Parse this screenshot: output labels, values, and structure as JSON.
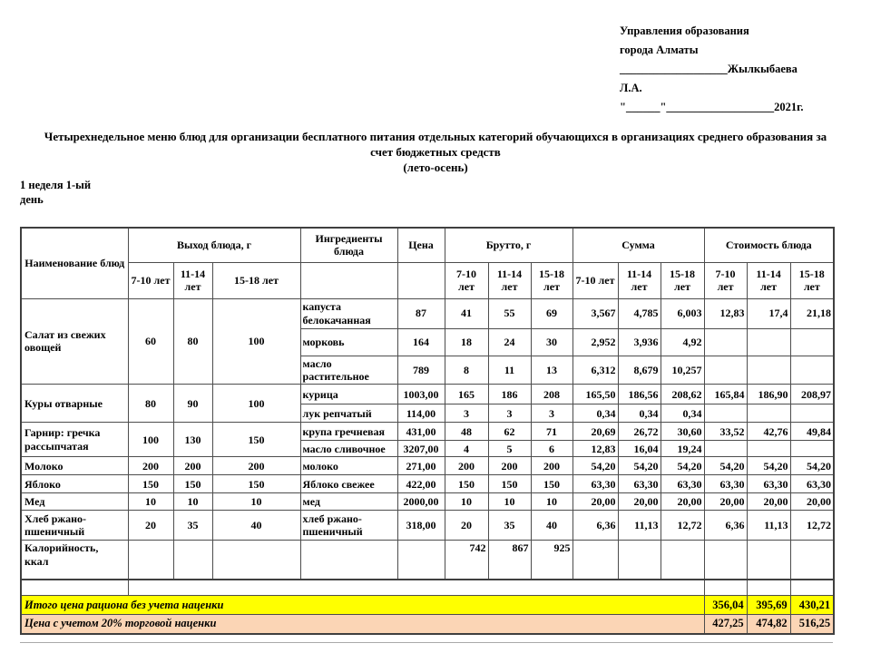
{
  "approval_block": {
    "lines": [
      "Управления образования",
      "города Алматы",
      "___________________Жылкыбаева",
      "Л.А.",
      "\"______\"___________________2021г."
    ]
  },
  "title": {
    "main": "Четырехнедельное меню блюд для организации бесплатного питания отдельных категорий обучающихся в организациях среднего образования за счет бюджетных средств",
    "season": "(лето-осень)"
  },
  "week_day_label": "1 неделя 1-ый день",
  "menu_table": {
    "columns": {
      "dish_name": "Наименование блюд",
      "output_group": "Выход блюда, г",
      "ingredients": "Ингредиенты блюда",
      "price": "Цена",
      "brutto_group": "Брутто, г",
      "sum_group": "Сумма",
      "cost_group": "Стоимость блюда"
    },
    "age_groups": [
      "7-10 лет",
      "11-14 лет",
      "15-18 лет"
    ],
    "dishes": [
      {
        "name": "Салат из свежих овощей",
        "output": [
          "60",
          "80",
          "100"
        ],
        "rows": [
          {
            "ingredient": "капуста белокачанная",
            "price": "87",
            "brutto": [
              "41",
              "55",
              "69"
            ],
            "sum": [
              "3,567",
              "4,785",
              "6,003"
            ],
            "cost": [
              "12,83",
              "17,4",
              "21,18"
            ]
          },
          {
            "ingredient": "морковь",
            "price": "164",
            "brutto": [
              "18",
              "24",
              "30"
            ],
            "sum": [
              "2,952",
              "3,936",
              "4,92"
            ],
            "cost": [
              "",
              "",
              ""
            ]
          },
          {
            "ingredient": "масло растительное",
            "price": "789",
            "brutto": [
              "8",
              "11",
              "13"
            ],
            "sum": [
              "6,312",
              "8,679",
              "10,257"
            ],
            "cost": [
              "",
              "",
              ""
            ]
          }
        ]
      },
      {
        "name": "Куры отварные",
        "output": [
          "80",
          "90",
          "100"
        ],
        "rows": [
          {
            "ingredient": "курица",
            "price": "1003,00",
            "brutto": [
              "165",
              "186",
              "208"
            ],
            "sum": [
              "165,50",
              "186,56",
              "208,62"
            ],
            "cost": [
              "165,84",
              "186,90",
              "208,97"
            ]
          },
          {
            "ingredient": "лук репчатый",
            "price": "114,00",
            "brutto": [
              "3",
              "3",
              "3"
            ],
            "sum": [
              "0,34",
              "0,34",
              "0,34"
            ],
            "cost": [
              "",
              "",
              ""
            ]
          }
        ]
      },
      {
        "name": "Гарнир: гречка рассыпчатая",
        "output": [
          "100",
          "130",
          "150"
        ],
        "rows": [
          {
            "ingredient": "крупа гречневая",
            "price": "431,00",
            "brutto": [
              "48",
              "62",
              "71"
            ],
            "sum": [
              "20,69",
              "26,72",
              "30,60"
            ],
            "cost": [
              "33,52",
              "42,76",
              "49,84"
            ]
          },
          {
            "ingredient": "масло сливочное",
            "price": "3207,00",
            "brutto": [
              "4",
              "5",
              "6"
            ],
            "sum": [
              "12,83",
              "16,04",
              "19,24"
            ],
            "cost": [
              "",
              "",
              ""
            ]
          }
        ]
      },
      {
        "name": "Молоко",
        "output": [
          "200",
          "200",
          "200"
        ],
        "rows": [
          {
            "ingredient": "молоко",
            "price": "271,00",
            "brutto": [
              "200",
              "200",
              "200"
            ],
            "sum": [
              "54,20",
              "54,20",
              "54,20"
            ],
            "cost": [
              "54,20",
              "54,20",
              "54,20"
            ]
          }
        ]
      },
      {
        "name": "Яблоко",
        "output": [
          "150",
          "150",
          "150"
        ],
        "rows": [
          {
            "ingredient": "Яблоко свежее",
            "price": "422,00",
            "brutto": [
              "150",
              "150",
              "150"
            ],
            "sum": [
              "63,30",
              "63,30",
              "63,30"
            ],
            "cost": [
              "63,30",
              "63,30",
              "63,30"
            ]
          }
        ]
      },
      {
        "name": "Мед",
        "output": [
          "10",
          "10",
          "10"
        ],
        "rows": [
          {
            "ingredient": "мед",
            "price": "2000,00",
            "brutto": [
              "10",
              "10",
              "10"
            ],
            "sum": [
              "20,00",
              "20,00",
              "20,00"
            ],
            "cost": [
              "20,00",
              "20,00",
              "20,00"
            ]
          }
        ]
      },
      {
        "name": "Хлеб ржано-пшеничный",
        "output": [
          "20",
          "35",
          "40"
        ],
        "rows": [
          {
            "ingredient": "хлеб ржано-пшеничный",
            "price": "318,00",
            "brutto": [
              "20",
              "35",
              "40"
            ],
            "sum": [
              "6,36",
              "11,13",
              "12,72"
            ],
            "cost": [
              "6,36",
              "11,13",
              "12,72"
            ]
          }
        ]
      },
      {
        "name": "Калорийность, ккал",
        "output": [
          "",
          "",
          ""
        ],
        "calories": true,
        "rows": [
          {
            "ingredient": "",
            "price": "",
            "brutto": [
              "742",
              "867",
              "925"
            ],
            "sum": [
              "",
              "",
              ""
            ],
            "cost": [
              "",
              "",
              ""
            ]
          }
        ]
      }
    ]
  },
  "totals": {
    "rows": [
      {
        "label": "Итого цена рациона без учета наценки",
        "values": [
          "356,04",
          "395,69",
          "430,21"
        ],
        "bg": "#FFFF00"
      },
      {
        "label": "Цена с учетом 20% торговой наценки",
        "values": [
          "427,25",
          "474,82",
          "516,25"
        ],
        "bg": "#FBD5B5"
      }
    ]
  },
  "colors": {
    "highlight_yellow": "#FFFF00",
    "highlight_orange": "#FBD5B5",
    "border": "#4d4d4d"
  }
}
